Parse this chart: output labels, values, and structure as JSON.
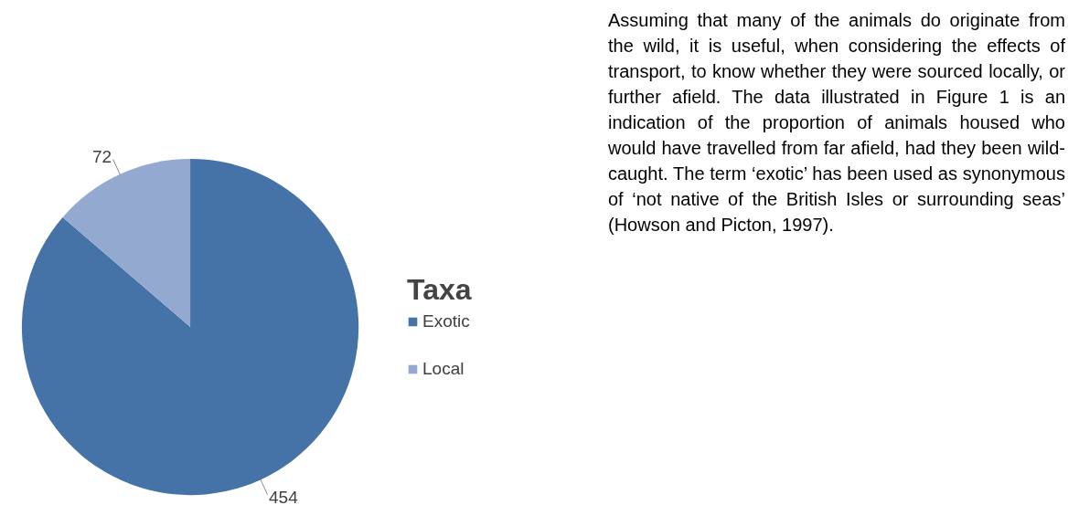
{
  "chart_data": {
    "type": "pie",
    "categories": [
      "Exotic",
      "Local"
    ],
    "values": [
      454,
      72
    ],
    "colors": [
      "#4572a7",
      "#93a9cf"
    ],
    "data_labels": true,
    "legend": "right",
    "legend_title": "Taxa",
    "annotations": [
      "Assuming that many of the animals do originate from the wild, it is useful, when considering the effects of transport, to know whether they were sourced locally, or further afield. The data illustrated in Figure 1 is an indication of the proportion of animals housed who would have travelled from far afield, had they been wild-caught. The term ‘exotic’ has been used as synonymous of ‘not native of the British Isles or surrounding seas’ (Howson and Picton, 1997)."
    ]
  }
}
